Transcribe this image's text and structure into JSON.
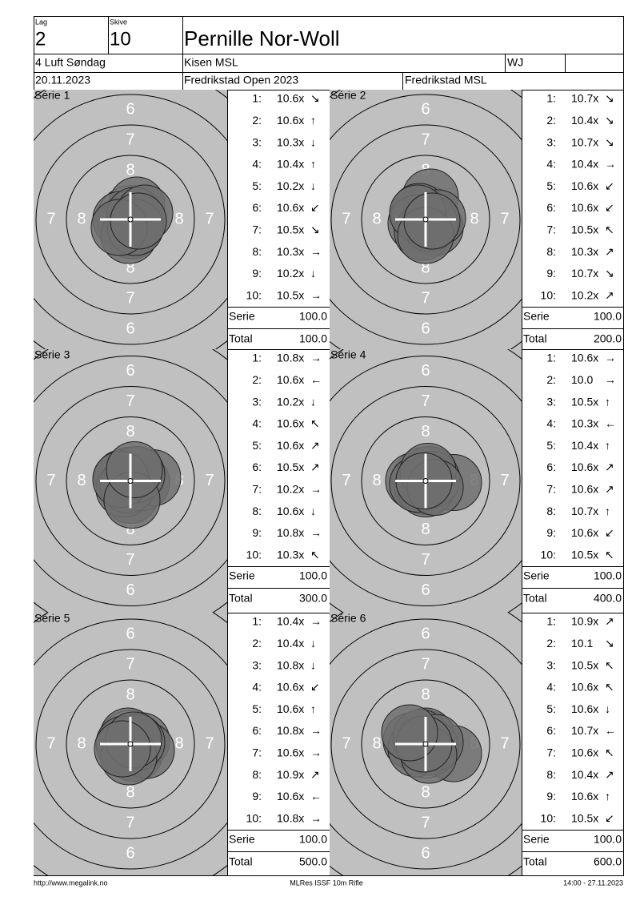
{
  "header": {
    "lag_label": "Lag",
    "lag": "2",
    "skive_label": "Skive",
    "skive": "10",
    "name": "Pernille Nor-Woll",
    "event": "4 Luft Søndag",
    "club": "Kisen MSL",
    "class": "WJ",
    "date": "20.11.2023",
    "competition": "Fredrikstad Open 2023",
    "organizer": "Fredrikstad MSL"
  },
  "ring_labels": [
    "6",
    "7",
    "8"
  ],
  "series": [
    {
      "label": "Série 1",
      "shots": [
        {
          "n": "1:",
          "score": "10.6x",
          "arrow": "↘"
        },
        {
          "n": "2:",
          "score": "10.6x",
          "arrow": "↑"
        },
        {
          "n": "3:",
          "score": "10.3x",
          "arrow": "↓"
        },
        {
          "n": "4:",
          "score": "10.4x",
          "arrow": "↑"
        },
        {
          "n": "5:",
          "score": "10.2x",
          "arrow": "↓"
        },
        {
          "n": "6:",
          "score": "10.6x",
          "arrow": "↙"
        },
        {
          "n": "7:",
          "score": "10.5x",
          "arrow": "↘"
        },
        {
          "n": "8:",
          "score": "10.3x",
          "arrow": "→"
        },
        {
          "n": "9:",
          "score": "10.2x",
          "arrow": "↓"
        },
        {
          "n": "10:",
          "score": "10.5x",
          "arrow": "→"
        }
      ],
      "serie_label": "Serie",
      "serie": "100.0",
      "total_label": "Total",
      "total": "100.0"
    },
    {
      "label": "Série 2",
      "shots": [
        {
          "n": "1:",
          "score": "10.7x",
          "arrow": "↘"
        },
        {
          "n": "2:",
          "score": "10.4x",
          "arrow": "↘"
        },
        {
          "n": "3:",
          "score": "10.7x",
          "arrow": "↘"
        },
        {
          "n": "4:",
          "score": "10.4x",
          "arrow": "→"
        },
        {
          "n": "5:",
          "score": "10.6x",
          "arrow": "↙"
        },
        {
          "n": "6:",
          "score": "10.6x",
          "arrow": "↙"
        },
        {
          "n": "7:",
          "score": "10.5x",
          "arrow": "↖"
        },
        {
          "n": "8:",
          "score": "10.3x",
          "arrow": "↗"
        },
        {
          "n": "9:",
          "score": "10.7x",
          "arrow": "↘"
        },
        {
          "n": "10:",
          "score": "10.2x",
          "arrow": "↗"
        }
      ],
      "serie_label": "Serie",
      "serie": "100.0",
      "total_label": "Total",
      "total": "200.0"
    },
    {
      "label": "Série 3",
      "shots": [
        {
          "n": "1:",
          "score": "10.8x",
          "arrow": "→"
        },
        {
          "n": "2:",
          "score": "10.6x",
          "arrow": "←"
        },
        {
          "n": "3:",
          "score": "10.2x",
          "arrow": "↓"
        },
        {
          "n": "4:",
          "score": "10.6x",
          "arrow": "↖"
        },
        {
          "n": "5:",
          "score": "10.6x",
          "arrow": "↗"
        },
        {
          "n": "6:",
          "score": "10.5x",
          "arrow": "↗"
        },
        {
          "n": "7:",
          "score": "10.2x",
          "arrow": "→"
        },
        {
          "n": "8:",
          "score": "10.6x",
          "arrow": "↓"
        },
        {
          "n": "9:",
          "score": "10.8x",
          "arrow": "→"
        },
        {
          "n": "10:",
          "score": "10.3x",
          "arrow": "↖"
        }
      ],
      "serie_label": "Serie",
      "serie": "100.0",
      "total_label": "Total",
      "total": "300.0"
    },
    {
      "label": "Série 4",
      "shots": [
        {
          "n": "1:",
          "score": "10.6x",
          "arrow": "→"
        },
        {
          "n": "2:",
          "score": "10.0",
          "arrow": "→"
        },
        {
          "n": "3:",
          "score": "10.5x",
          "arrow": "↑"
        },
        {
          "n": "4:",
          "score": "10.3x",
          "arrow": "←"
        },
        {
          "n": "5:",
          "score": "10.4x",
          "arrow": "↑"
        },
        {
          "n": "6:",
          "score": "10.6x",
          "arrow": "↗"
        },
        {
          "n": "7:",
          "score": "10.6x",
          "arrow": "↗"
        },
        {
          "n": "8:",
          "score": "10.7x",
          "arrow": "↑"
        },
        {
          "n": "9:",
          "score": "10.6x",
          "arrow": "↙"
        },
        {
          "n": "10:",
          "score": "10.5x",
          "arrow": "↖"
        }
      ],
      "serie_label": "Serie",
      "serie": "100.0",
      "total_label": "Total",
      "total": "400.0"
    },
    {
      "label": "Série 5",
      "shots": [
        {
          "n": "1:",
          "score": "10.4x",
          "arrow": "→"
        },
        {
          "n": "2:",
          "score": "10.4x",
          "arrow": "↓"
        },
        {
          "n": "3:",
          "score": "10.8x",
          "arrow": "↓"
        },
        {
          "n": "4:",
          "score": "10.6x",
          "arrow": "↙"
        },
        {
          "n": "5:",
          "score": "10.6x",
          "arrow": "↑"
        },
        {
          "n": "6:",
          "score": "10.8x",
          "arrow": "→"
        },
        {
          "n": "7:",
          "score": "10.6x",
          "arrow": "→"
        },
        {
          "n": "8:",
          "score": "10.9x",
          "arrow": "↗"
        },
        {
          "n": "9:",
          "score": "10.6x",
          "arrow": "←"
        },
        {
          "n": "10:",
          "score": "10.8x",
          "arrow": "→"
        }
      ],
      "serie_label": "Serie",
      "serie": "100.0",
      "total_label": "Total",
      "total": "500.0"
    },
    {
      "label": "Série 6",
      "shots": [
        {
          "n": "1:",
          "score": "10.9x",
          "arrow": "↗"
        },
        {
          "n": "2:",
          "score": "10.1",
          "arrow": "↘"
        },
        {
          "n": "3:",
          "score": "10.5x",
          "arrow": "↖"
        },
        {
          "n": "4:",
          "score": "10.6x",
          "arrow": "↖"
        },
        {
          "n": "5:",
          "score": "10.6x",
          "arrow": "↓"
        },
        {
          "n": "6:",
          "score": "10.7x",
          "arrow": "←"
        },
        {
          "n": "7:",
          "score": "10.6x",
          "arrow": "↖"
        },
        {
          "n": "8:",
          "score": "10.4x",
          "arrow": "↗"
        },
        {
          "n": "9:",
          "score": "10.6x",
          "arrow": "↑"
        },
        {
          "n": "10:",
          "score": "10.5x",
          "arrow": "↙"
        }
      ],
      "serie_label": "Serie",
      "serie": "100.0",
      "total_label": "Total",
      "total": "600.0"
    }
  ],
  "footer": {
    "url": "http://www.megalink.no",
    "program": "MLRes ISSF 10m Rifle",
    "timestamp": "14:00 - 27.11.2023"
  }
}
